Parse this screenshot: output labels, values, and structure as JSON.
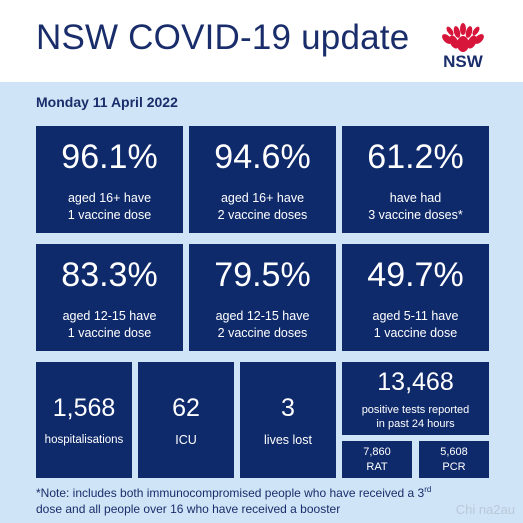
{
  "header": {
    "title": "NSW COVID-19 update",
    "logo_text": "NSW",
    "logo_icon": "waratah-flower-icon",
    "colors": {
      "navy": "#1a2d6b",
      "card": "#0f2a6b",
      "panel": "#cfe4f6",
      "logo_red": "#d7153a"
    }
  },
  "date": "Monday 11 April 2022",
  "vaccine_cards": [
    {
      "value": "96.1%",
      "line1": "aged 16+ have",
      "line2": "1 vaccine dose"
    },
    {
      "value": "94.6%",
      "line1": "aged 16+ have",
      "line2": "2 vaccine doses"
    },
    {
      "value": "61.2%",
      "line1": "have had",
      "line2": "3 vaccine doses*"
    },
    {
      "value": "83.3%",
      "line1": "aged 12-15 have",
      "line2": "1 vaccine dose"
    },
    {
      "value": "79.5%",
      "line1": "aged 12-15 have",
      "line2": "2 vaccine doses"
    },
    {
      "value": "49.7%",
      "line1": "aged 5-11 have",
      "line2": "1 vaccine dose"
    }
  ],
  "stats": {
    "hospitalisations": {
      "value": "1,568",
      "label": "hospitalisations"
    },
    "icu": {
      "value": "62",
      "label": "ICU"
    },
    "lives_lost": {
      "value": "3",
      "label": "lives lost"
    },
    "positive_tests": {
      "value": "13,468",
      "line1": "positive tests reported",
      "line2": "in past 24 hours"
    },
    "rat": {
      "value": "7,860",
      "label": "RAT"
    },
    "pcr": {
      "value": "5,608",
      "label": "PCR"
    }
  },
  "note": {
    "line1_pre": "*Note: includes both immunocompromised  people who have received a 3",
    "line1_sup": "rd",
    "line2": "dose and all people over 16 who have received a booster"
  },
  "watermark": "Chi na2au"
}
